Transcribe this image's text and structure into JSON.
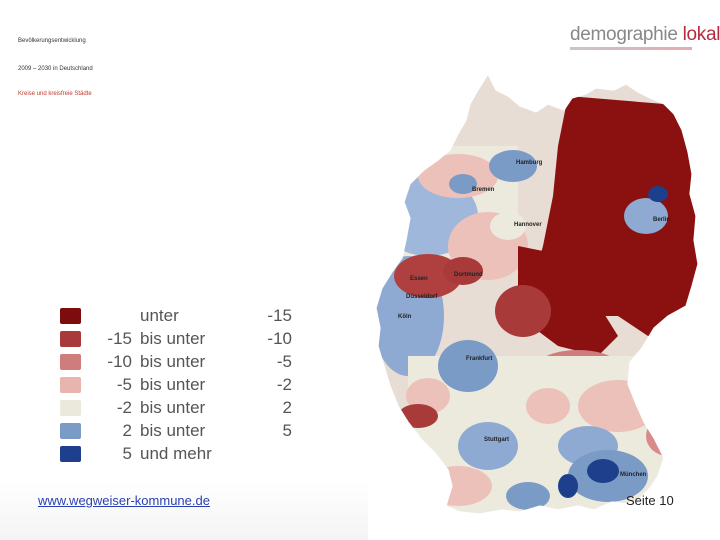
{
  "slide": {
    "title_line1": "Bevölkerungsentwicklung",
    "title_line2": "2009 – 2030 in Deutschland",
    "subtitle": "Kreise und kreisfreie Städte"
  },
  "logo": {
    "part1": "demographie ",
    "part2": "lokal"
  },
  "legend": [
    {
      "a": "",
      "b": "unter",
      "c": "-15",
      "color": "#7d0d0d"
    },
    {
      "a": "-15",
      "b": "bis unter",
      "c": "-10",
      "color": "#a83a3a"
    },
    {
      "a": "-10",
      "b": "bis unter",
      "c": "-5",
      "color": "#cf7c7c"
    },
    {
      "a": "-5",
      "b": "bis unter",
      "c": "-2",
      "color": "#e8b4ae"
    },
    {
      "a": "-2",
      "b": "bis unter",
      "c": "2",
      "color": "#ebe8dc"
    },
    {
      "a": "2",
      "b": "bis unter",
      "c": "5",
      "color": "#7b9bc7"
    },
    {
      "a": "5",
      "b": "und mehr",
      "c": "",
      "color": "#1d3f8c"
    }
  ],
  "colors": {
    "dark_red": "#8b1010",
    "red": "#b04040",
    "pink": "#d88b8b",
    "light_pink": "#ecc1ba",
    "neutral": "#ece9dd",
    "light_blue": "#8eaad2",
    "dark_blue": "#1d3f8c"
  },
  "cities": [
    {
      "name": "Hamburg"
    },
    {
      "name": "Bremen"
    },
    {
      "name": "Berlin"
    },
    {
      "name": "Hannover"
    },
    {
      "name": "Dortmund"
    },
    {
      "name": "Essen"
    },
    {
      "name": "Düsseldorf"
    },
    {
      "name": "Köln"
    },
    {
      "name": "Frankfurt"
    },
    {
      "name": "Stuttgart"
    },
    {
      "name": "München"
    }
  ],
  "footer": {
    "website": "www.wegweiser-kommune.de",
    "page": "Seite 10"
  }
}
